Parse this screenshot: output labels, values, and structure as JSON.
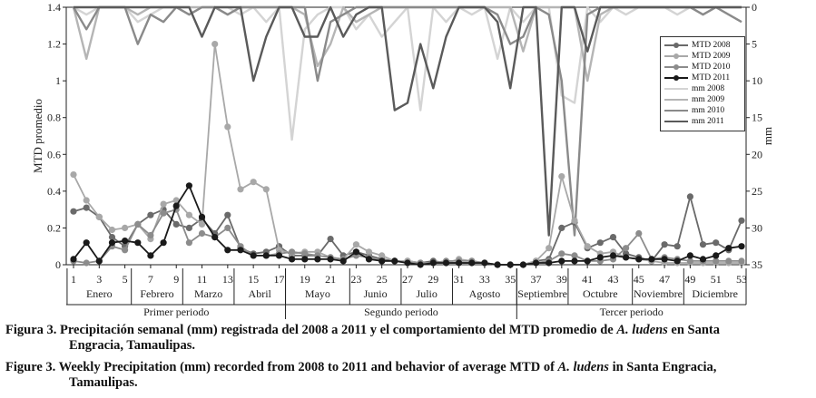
{
  "chart_data": {
    "type": "line",
    "ylabel_left": "MTD promedio",
    "ylabel_right": "mm",
    "ylim_left": [
      0,
      1.4
    ],
    "ylim_right_inverted": [
      0,
      35
    ],
    "left_ticks": [
      "0",
      "0.2",
      "0.4",
      "0.6",
      "0.8",
      "1",
      "1.2",
      "1.4"
    ],
    "right_ticks": [
      "0",
      "5",
      "10",
      "15",
      "20",
      "25",
      "30",
      "35"
    ],
    "x_weeks": [
      1,
      2,
      3,
      4,
      5,
      6,
      7,
      8,
      9,
      10,
      11,
      12,
      13,
      14,
      15,
      16,
      17,
      18,
      19,
      20,
      21,
      22,
      23,
      24,
      25,
      26,
      27,
      28,
      29,
      30,
      31,
      32,
      33,
      34,
      35,
      36,
      37,
      38,
      39,
      40,
      41,
      42,
      43,
      44,
      45,
      46,
      47,
      48,
      49,
      50,
      51,
      52,
      53
    ],
    "x_tick_labels": [
      "1",
      "3",
      "5",
      "7",
      "9",
      "11",
      "13",
      "15",
      "17",
      "19",
      "21",
      "23",
      "25",
      "27",
      "29",
      "31",
      "33",
      "35",
      "37",
      "39",
      "41",
      "43",
      "45",
      "47",
      "49",
      "51",
      "53"
    ],
    "months": [
      "Enero",
      "Febrero",
      "Marzo",
      "Abril",
      "Mayo",
      "Junio",
      "Julio",
      "Agosto",
      "Septiembre",
      "Octubre",
      "Noviembre",
      "Diciembre"
    ],
    "periods": [
      "Primer periodo",
      "Segundo periodo",
      "Tercer periodo"
    ],
    "series": [
      {
        "name": "MTD 2008",
        "axis": "left",
        "kind": "mtd",
        "color": "#6a6a6a",
        "values": [
          0.29,
          0.31,
          0.26,
          0.15,
          0.1,
          0.22,
          0.27,
          0.3,
          0.22,
          0.2,
          0.25,
          0.17,
          0.27,
          0.09,
          0.06,
          0.07,
          0.1,
          0.05,
          0.05,
          0.05,
          0.14,
          0.05,
          0.07,
          0.05,
          0.03,
          0.02,
          0.02,
          0.01,
          0.02,
          0.01,
          0.01,
          0.01,
          0.01,
          0.0,
          0.0,
          0.0,
          0.02,
          0.03,
          0.2,
          0.23,
          0.09,
          0.12,
          0.15,
          0.06,
          0.04,
          0.02,
          0.11,
          0.1,
          0.37,
          0.11,
          0.12,
          0.08,
          0.24
        ]
      },
      {
        "name": "MTD 2009",
        "axis": "left",
        "kind": "mtd",
        "color": "#a8a8a8",
        "values": [
          0.49,
          0.35,
          0.26,
          0.19,
          0.2,
          0.22,
          0.14,
          0.33,
          0.35,
          0.27,
          0.22,
          1.2,
          0.75,
          0.41,
          0.45,
          0.41,
          0.08,
          0.06,
          0.07,
          0.07,
          0.04,
          0.03,
          0.11,
          0.07,
          0.05,
          0.02,
          0.02,
          0.01,
          0.01,
          0.01,
          0.03,
          0.02,
          0.01,
          0.0,
          0.0,
          0.0,
          0.02,
          0.09,
          0.48,
          0.24,
          0.1,
          0.06,
          0.07,
          0.04,
          0.03,
          0.02,
          0.01,
          0.01,
          0.01,
          0.01,
          0.01,
          0.01,
          0.01
        ]
      },
      {
        "name": "MTD 2010",
        "axis": "left",
        "kind": "mtd",
        "color": "#8c8c8c",
        "values": [
          0.02,
          0.01,
          0.02,
          0.1,
          0.08,
          0.22,
          0.16,
          0.28,
          0.3,
          0.12,
          0.17,
          0.15,
          0.2,
          0.1,
          0.05,
          0.05,
          0.06,
          0.07,
          0.06,
          0.05,
          0.04,
          0.03,
          0.05,
          0.04,
          0.02,
          0.02,
          0.01,
          0.01,
          0.01,
          0.02,
          0.02,
          0.02,
          0.01,
          0.0,
          0.0,
          0.0,
          0.01,
          0.02,
          0.06,
          0.05,
          0.02,
          0.02,
          0.03,
          0.09,
          0.17,
          0.03,
          0.04,
          0.03,
          0.02,
          0.02,
          0.02,
          0.02,
          0.02
        ]
      },
      {
        "name": "MTD 2011",
        "axis": "left",
        "kind": "mtd",
        "color": "#1a1a1a",
        "values": [
          0.03,
          0.12,
          0.02,
          0.12,
          0.13,
          0.12,
          0.05,
          0.12,
          0.32,
          0.43,
          0.26,
          0.15,
          0.08,
          0.08,
          0.05,
          0.05,
          0.05,
          0.03,
          0.03,
          0.03,
          0.03,
          0.02,
          0.07,
          0.03,
          0.02,
          0.02,
          0.01,
          0.0,
          0.01,
          0.01,
          0.01,
          0.01,
          0.01,
          0.0,
          0.0,
          0.0,
          0.01,
          0.01,
          0.02,
          0.02,
          0.02,
          0.04,
          0.05,
          0.04,
          0.03,
          0.03,
          0.03,
          0.02,
          0.05,
          0.03,
          0.05,
          0.09,
          0.1
        ]
      },
      {
        "name": "mm 2008",
        "axis": "right",
        "kind": "mm",
        "color": "#d4d4d4",
        "values": [
          0,
          1,
          0,
          0,
          0,
          2,
          1,
          0,
          0,
          1,
          0,
          0,
          0,
          1,
          0,
          2,
          0,
          18,
          3,
          1,
          0,
          0,
          3,
          1,
          4,
          2,
          0,
          14,
          0,
          2,
          0,
          1,
          0,
          7,
          0,
          2,
          0,
          0,
          12,
          13,
          0,
          2,
          0,
          1,
          0,
          0,
          0,
          1,
          0,
          1,
          0,
          0,
          0
        ]
      },
      {
        "name": "mm 2009",
        "axis": "right",
        "kind": "mm",
        "color": "#b5b5b5",
        "values": [
          0,
          7,
          0,
          0,
          0,
          1,
          0,
          0,
          0,
          0,
          0,
          0,
          1,
          0,
          0,
          0,
          0,
          0,
          1,
          8,
          5,
          0,
          2,
          1,
          0,
          0,
          0,
          0,
          0,
          0,
          0,
          0,
          0,
          0,
          0,
          6,
          0,
          0,
          0,
          0,
          10,
          1,
          0,
          0,
          0,
          0,
          0,
          0,
          0,
          0,
          0,
          0,
          0
        ]
      },
      {
        "name": "mm 2010",
        "axis": "right",
        "kind": "mm",
        "color": "#8a8a8a",
        "values": [
          0,
          3,
          0,
          0,
          0,
          5,
          1,
          2,
          0,
          1,
          0,
          0,
          1,
          0,
          0,
          0,
          0,
          0,
          0,
          10,
          2,
          1,
          0,
          0,
          0,
          0,
          0,
          0,
          0,
          0,
          0,
          0,
          0,
          1,
          5,
          4,
          0,
          1,
          10,
          31,
          1,
          0,
          0,
          0,
          0,
          0,
          0,
          0,
          0,
          1,
          0,
          1,
          2
        ]
      },
      {
        "name": "mm 2011",
        "axis": "right",
        "kind": "mm",
        "color": "#5a5a5a",
        "values": [
          0,
          0,
          0,
          0,
          0,
          0,
          0,
          0,
          0,
          0,
          4,
          0,
          0,
          0,
          10,
          4,
          0,
          0,
          4,
          4,
          0,
          4,
          1,
          0,
          0,
          14,
          13,
          5,
          11,
          4,
          0,
          0,
          0,
          2,
          11,
          0,
          0,
          31,
          0,
          0,
          6,
          0,
          0,
          0,
          0,
          0,
          0,
          0,
          0,
          0,
          0,
          0,
          0
        ]
      }
    ]
  },
  "legend": {
    "labels": [
      "MTD 2008",
      "MTD 2009",
      "MTD 2010",
      "MTD 2011",
      "mm 2008",
      "mm 2009",
      "mm 2010",
      "mm 2011"
    ]
  },
  "caption": {
    "es_prefix": "Figura 3. Precipitación semanal (mm) registrada del 2008 a 2011 y el comportamiento del MTD promedio de ",
    "es_species": "A. ludens",
    "es_suffix": " en Santa",
    "es_line2": "Engracia, Tamaulipas.",
    "en_prefix": "Figure 3. Weekly Precipitation (mm) recorded from 2008 to 2011 and behavior of average MTD of ",
    "en_species": "A. ludens",
    "en_suffix": " in Santa Engracia,",
    "en_line2": "Tamaulipas."
  }
}
